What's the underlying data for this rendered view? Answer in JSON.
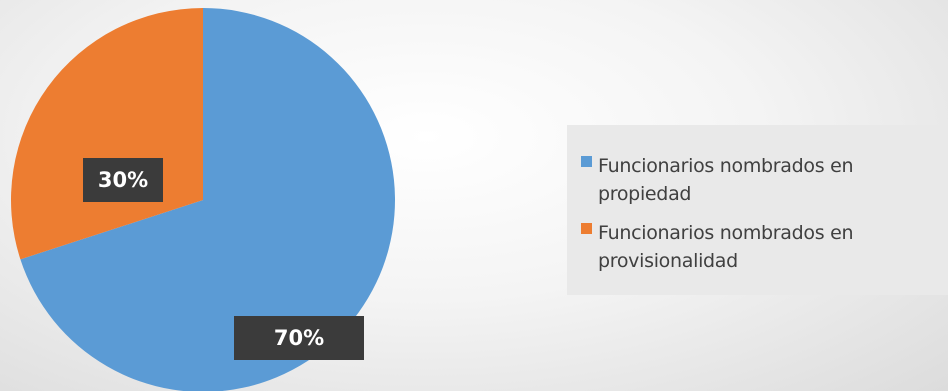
{
  "chart_data": {
    "type": "pie",
    "title": "",
    "slices": [
      {
        "name": "Funcionarios nombrados en propiedad",
        "value": 70,
        "label": "70%",
        "color": "#5b9bd5"
      },
      {
        "name": "Funcionarios nombrados en provisionalidad",
        "value": 30,
        "label": "30%",
        "color": "#ed7d31"
      }
    ],
    "legend_position": "right"
  }
}
